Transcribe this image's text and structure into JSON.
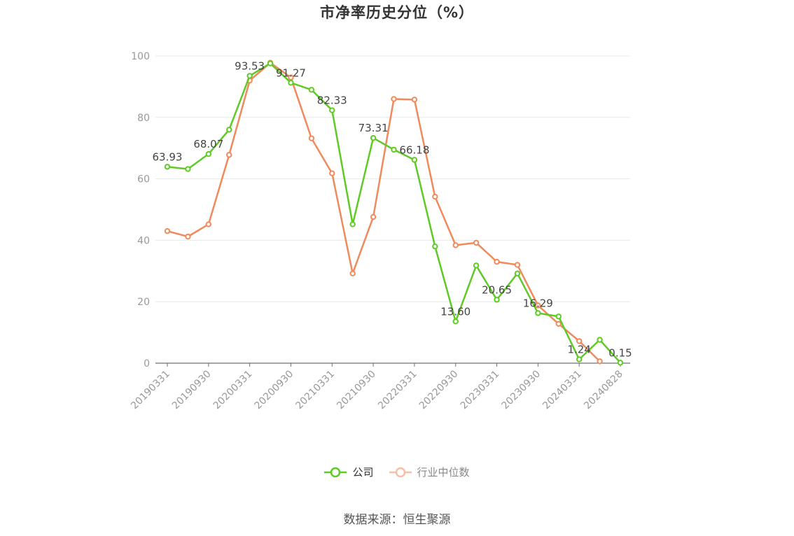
{
  "chart_data": {
    "type": "line",
    "title": "市净率历史分位（%）",
    "ylim": [
      0,
      100
    ],
    "yticks": [
      0,
      20,
      40,
      60,
      80,
      100
    ],
    "grid": true,
    "legend_position": "bottom-center",
    "x_tick_labels": [
      "20190331",
      "20190930",
      "20200331",
      "20200930",
      "20210331",
      "20210930",
      "20220331",
      "20220930",
      "20230331",
      "20230930",
      "20240331",
      "20240828"
    ],
    "series": [
      {
        "name": "公司",
        "color": "#5fca24",
        "values": [
          63.93,
          63.2,
          68.07,
          76.0,
          93.53,
          97.6,
          91.27,
          89.0,
          82.33,
          45.2,
          73.31,
          69.5,
          66.18,
          38.0,
          13.6,
          31.8,
          20.65,
          29.2,
          16.29,
          15.2,
          1.24,
          7.6,
          0.15
        ],
        "labels": [
          "63.93",
          "",
          "68.07",
          "",
          "93.53",
          "",
          "91.27",
          "",
          "82.33",
          "",
          "73.31",
          "",
          "66.18",
          "",
          "13.60",
          "",
          "20.65",
          "",
          "16.29",
          "",
          "1.24",
          "",
          "0.15"
        ]
      },
      {
        "name": "行业中位数",
        "color": "#f08a5d",
        "values": [
          43.0,
          41.2,
          45.2,
          67.8,
          92.0,
          97.8,
          93.0,
          73.2,
          61.8,
          29.2,
          47.6,
          86.0,
          85.8,
          54.2,
          38.4,
          39.2,
          33.0,
          32.0,
          18.8,
          12.8,
          7.2,
          0.6,
          null
        ],
        "labels": []
      }
    ]
  },
  "legend": {
    "company": "公司",
    "industry": "行业中位数"
  },
  "source": "数据来源：恒生聚源"
}
